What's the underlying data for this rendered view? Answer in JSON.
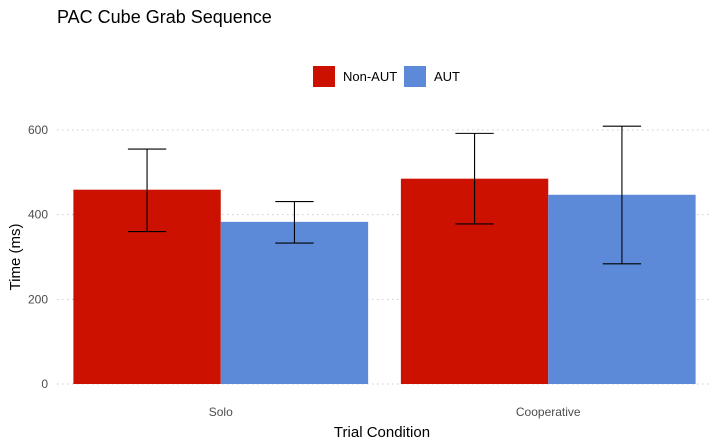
{
  "chart_data": {
    "type": "bar",
    "title": "PAC Cube Grab Sequence",
    "xlabel": "Trial Condition",
    "ylabel": "Time (ms)",
    "categories": [
      "Solo",
      "Cooperative"
    ],
    "series": [
      {
        "name": "Non-AUT",
        "color": "#cc1100",
        "values": [
          459,
          485
        ],
        "err_low": [
          360,
          378
        ],
        "err_high": [
          555,
          592
        ]
      },
      {
        "name": "AUT",
        "color": "#5c8ad9",
        "values": [
          383,
          447
        ],
        "err_low": [
          333,
          284
        ],
        "err_high": [
          431,
          609
        ]
      }
    ],
    "ylim": [
      0,
      660
    ],
    "yticks": [
      0,
      200,
      400,
      600
    ],
    "grid": "horizontal",
    "legend_position": "top"
  }
}
